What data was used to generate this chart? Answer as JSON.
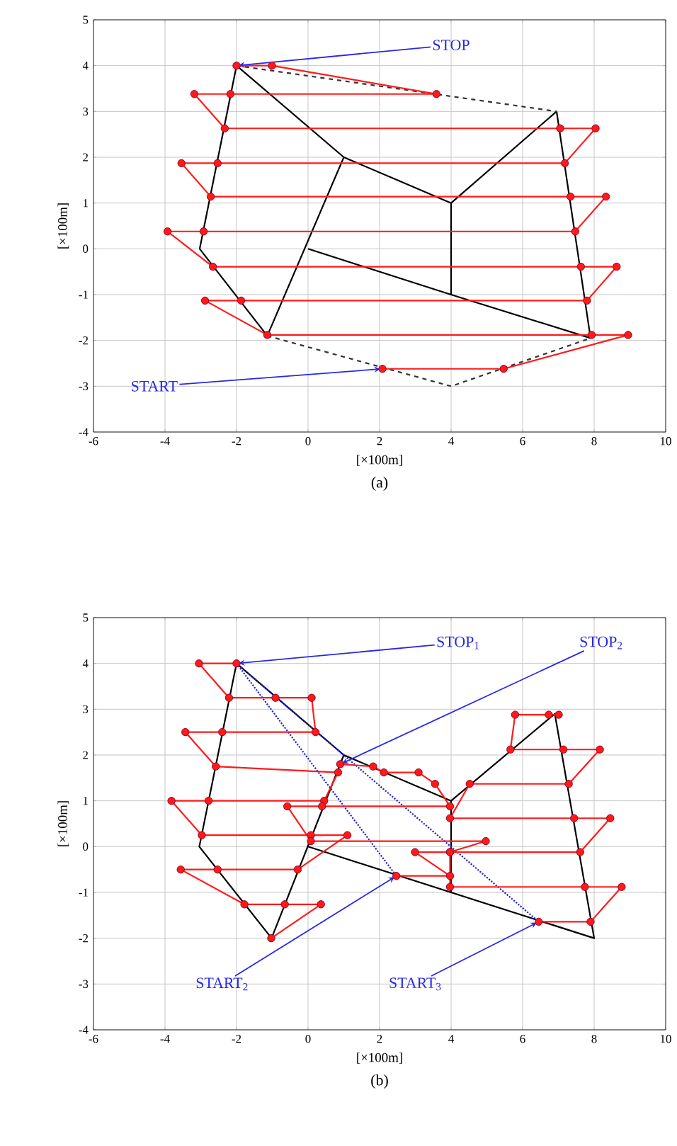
{
  "chart_data": [
    {
      "type": "line",
      "title": "(a)",
      "xlabel": "[×100m]",
      "ylabel": "[×100m]",
      "xlim": [
        -6,
        10
      ],
      "ylim": [
        -4,
        5
      ],
      "xticks": [
        -6,
        -4,
        -2,
        0,
        2,
        4,
        6,
        8,
        10
      ],
      "yticks": [
        -4,
        -3,
        -2,
        -1,
        0,
        1,
        2,
        3,
        4,
        5
      ],
      "grid": true,
      "annotations": [
        {
          "text": "STOP",
          "x": -2,
          "y": 4
        },
        {
          "text": "START",
          "x": 2.08,
          "y": -2.62
        }
      ],
      "series": [
        {
          "color": "#000000",
          "line_style": "solid",
          "marker": "none",
          "x": [
            -2,
            -3.03,
            -1.14,
            null,
            7.9,
            6.95,
            null,
            -2,
            1,
            4,
            6.95,
            null,
            4,
            4,
            null,
            1,
            -1.14,
            null,
            0,
            4,
            7.9
          ],
          "values": [
            4,
            0,
            -1.9,
            null,
            -1.95,
            3,
            null,
            4,
            2,
            1,
            3,
            null,
            1,
            -1,
            null,
            2,
            -1.9,
            null,
            0,
            -1,
            -1.95
          ]
        },
        {
          "color": "#333333",
          "line_style": "dashed",
          "marker": "none",
          "x": [
            -2,
            6.95,
            null,
            -1.14,
            4,
            7.9
          ],
          "values": [
            4,
            3,
            null,
            -1.9,
            -3,
            -1.95
          ]
        },
        {
          "color": "#ff1a1a",
          "line_style": "solid",
          "marker": "circle",
          "x": [
            2.08,
            5.47,
            8.95,
            7.93,
            -1.14,
            -2.88,
            -1.87,
            7.8,
            8.63,
            7.63,
            -2.66,
            -3.93,
            -2.92,
            7.47,
            8.33,
            7.34,
            -2.72,
            -3.54,
            -2.53,
            7.18,
            8.04,
            7.05,
            -2.33,
            -3.18,
            -2.17,
            3.59,
            -1.01,
            -2
          ],
          "values": [
            -2.62,
            -2.62,
            -1.88,
            -1.88,
            -1.88,
            -1.13,
            -1.13,
            -1.13,
            -0.39,
            -0.39,
            -0.39,
            0.38,
            0.38,
            0.38,
            1.14,
            1.14,
            1.14,
            1.87,
            1.87,
            1.87,
            2.63,
            2.63,
            2.63,
            3.38,
            3.38,
            3.38,
            4,
            4
          ]
        }
      ]
    },
    {
      "type": "line",
      "title": "(b)",
      "xlabel": "[×100m]",
      "ylabel": "[×100m]",
      "xlim": [
        -6,
        10
      ],
      "ylim": [
        -4,
        5
      ],
      "xticks": [
        -6,
        -4,
        -2,
        0,
        2,
        4,
        6,
        8,
        10
      ],
      "yticks": [
        -4,
        -3,
        -2,
        -1,
        0,
        1,
        2,
        3,
        4,
        5
      ],
      "grid": true,
      "annotations": [
        {
          "text": "STOP$_{1}$",
          "x": -2,
          "y": 4
        },
        {
          "text": "STOP$_{2}$",
          "x": 0.9,
          "y": 1.8
        },
        {
          "text": "START$_{2}$",
          "x": 2.47,
          "y": -0.64
        },
        {
          "text": "START$_{3}$",
          "x": 6.45,
          "y": -1.64
        }
      ],
      "series": [
        {
          "color": "#000000",
          "line_style": "solid",
          "marker": "none",
          "x": [
            0,
            8,
            6.9,
            4,
            1,
            -2,
            -3.04,
            -1.02,
            1,
            null,
            4,
            4
          ],
          "values": [
            0,
            -2,
            2.9,
            1,
            2,
            4,
            0,
            -2,
            2,
            null,
            1,
            -1
          ]
        },
        {
          "color": "#2222dd",
          "line_style": "dotted",
          "marker": "none",
          "x": [
            -2,
            2.47,
            null,
            -2,
            6.45
          ],
          "values": [
            4,
            -0.64,
            null,
            4,
            -1.64
          ]
        },
        {
          "color": "#ff1a1a",
          "line_style": "solid",
          "marker": "circle",
          "x": [
            -1.03,
            0.36,
            -0.65,
            -1.78,
            -3.56,
            -2.53,
            -0.29,
            1.1,
            0.08,
            -2.97,
            -3.82,
            -2.78,
            0.45,
            0.84,
            -2.58,
            -3.43,
            -2.4,
            0.21,
            0.1,
            -0.91,
            -2.21,
            -3.05,
            -2
          ],
          "values": [
            -2,
            -1.26,
            -1.26,
            -1.26,
            -0.5,
            -0.5,
            -0.5,
            0.25,
            0.25,
            0.25,
            1,
            1,
            1,
            1.62,
            1.75,
            2.5,
            2.5,
            2.5,
            3.25,
            3.25,
            3.25,
            4,
            4
          ]
        },
        {
          "color": "#ff1a1a",
          "line_style": "solid",
          "marker": "circle",
          "x": [
            2.47,
            3.97,
            2.99,
            3.97,
            4.97,
            0.08,
            -0.58,
            0.39,
            3.97,
            3.55,
            3.09,
            2.12,
            1.82,
            0.9
          ],
          "values": [
            -0.64,
            -0.64,
            -0.12,
            -0.12,
            0.12,
            0.12,
            0.88,
            0.88,
            0.88,
            1.37,
            1.62,
            1.62,
            1.75,
            1.8
          ]
        },
        {
          "color": "#ff1a1a",
          "line_style": "solid",
          "marker": "circle",
          "x": [
            6.45,
            7.9,
            8.77,
            7.74,
            3.97,
            3.97,
            7.61,
            8.45,
            7.44,
            3.97,
            4.52,
            7.29,
            8.16,
            7.14,
            5.66,
            5.79,
            6.73,
            7.01
          ],
          "values": [
            -1.64,
            -1.64,
            -0.88,
            -0.88,
            -0.88,
            -0.12,
            -0.12,
            0.62,
            0.62,
            0.62,
            1.37,
            1.37,
            2.12,
            2.12,
            2.12,
            2.88,
            2.88,
            2.88
          ]
        }
      ]
    }
  ]
}
